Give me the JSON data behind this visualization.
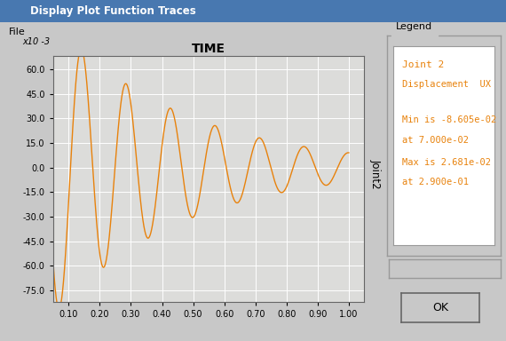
{
  "title": "TIME",
  "ylabel_right_label": "Joint2",
  "xlabel_ticks": [
    0.1,
    0.2,
    0.3,
    0.4,
    0.5,
    0.6,
    0.7,
    0.8,
    0.9,
    1.0
  ],
  "yticks": [
    60.0,
    45.0,
    30.0,
    15.0,
    0.0,
    -15.0,
    -30.0,
    -45.0,
    -60.0,
    -75.0
  ],
  "ylim": [
    -82,
    68
  ],
  "xlim": [
    0.05,
    1.05
  ],
  "line_color": "#E8820C",
  "y_scale_label": "x10 -3",
  "bg_color": "#C8C8C8",
  "plot_bg_color": "#D8D8D4",
  "legend_title": "Legend",
  "legend_lines": [
    "Joint 2",
    "Displacement  UX",
    "Min is -8.605e-02",
    "at 7.000e-02",
    "Max is 2.681e-02",
    "at 2.900e-01"
  ],
  "legend_color": "#E8820C",
  "window_title": "Display Plot Function Traces",
  "ok_label": "OK",
  "file_label": "File",
  "title_bar_color1": "#3060A0",
  "title_bar_color2": "#6090C0"
}
